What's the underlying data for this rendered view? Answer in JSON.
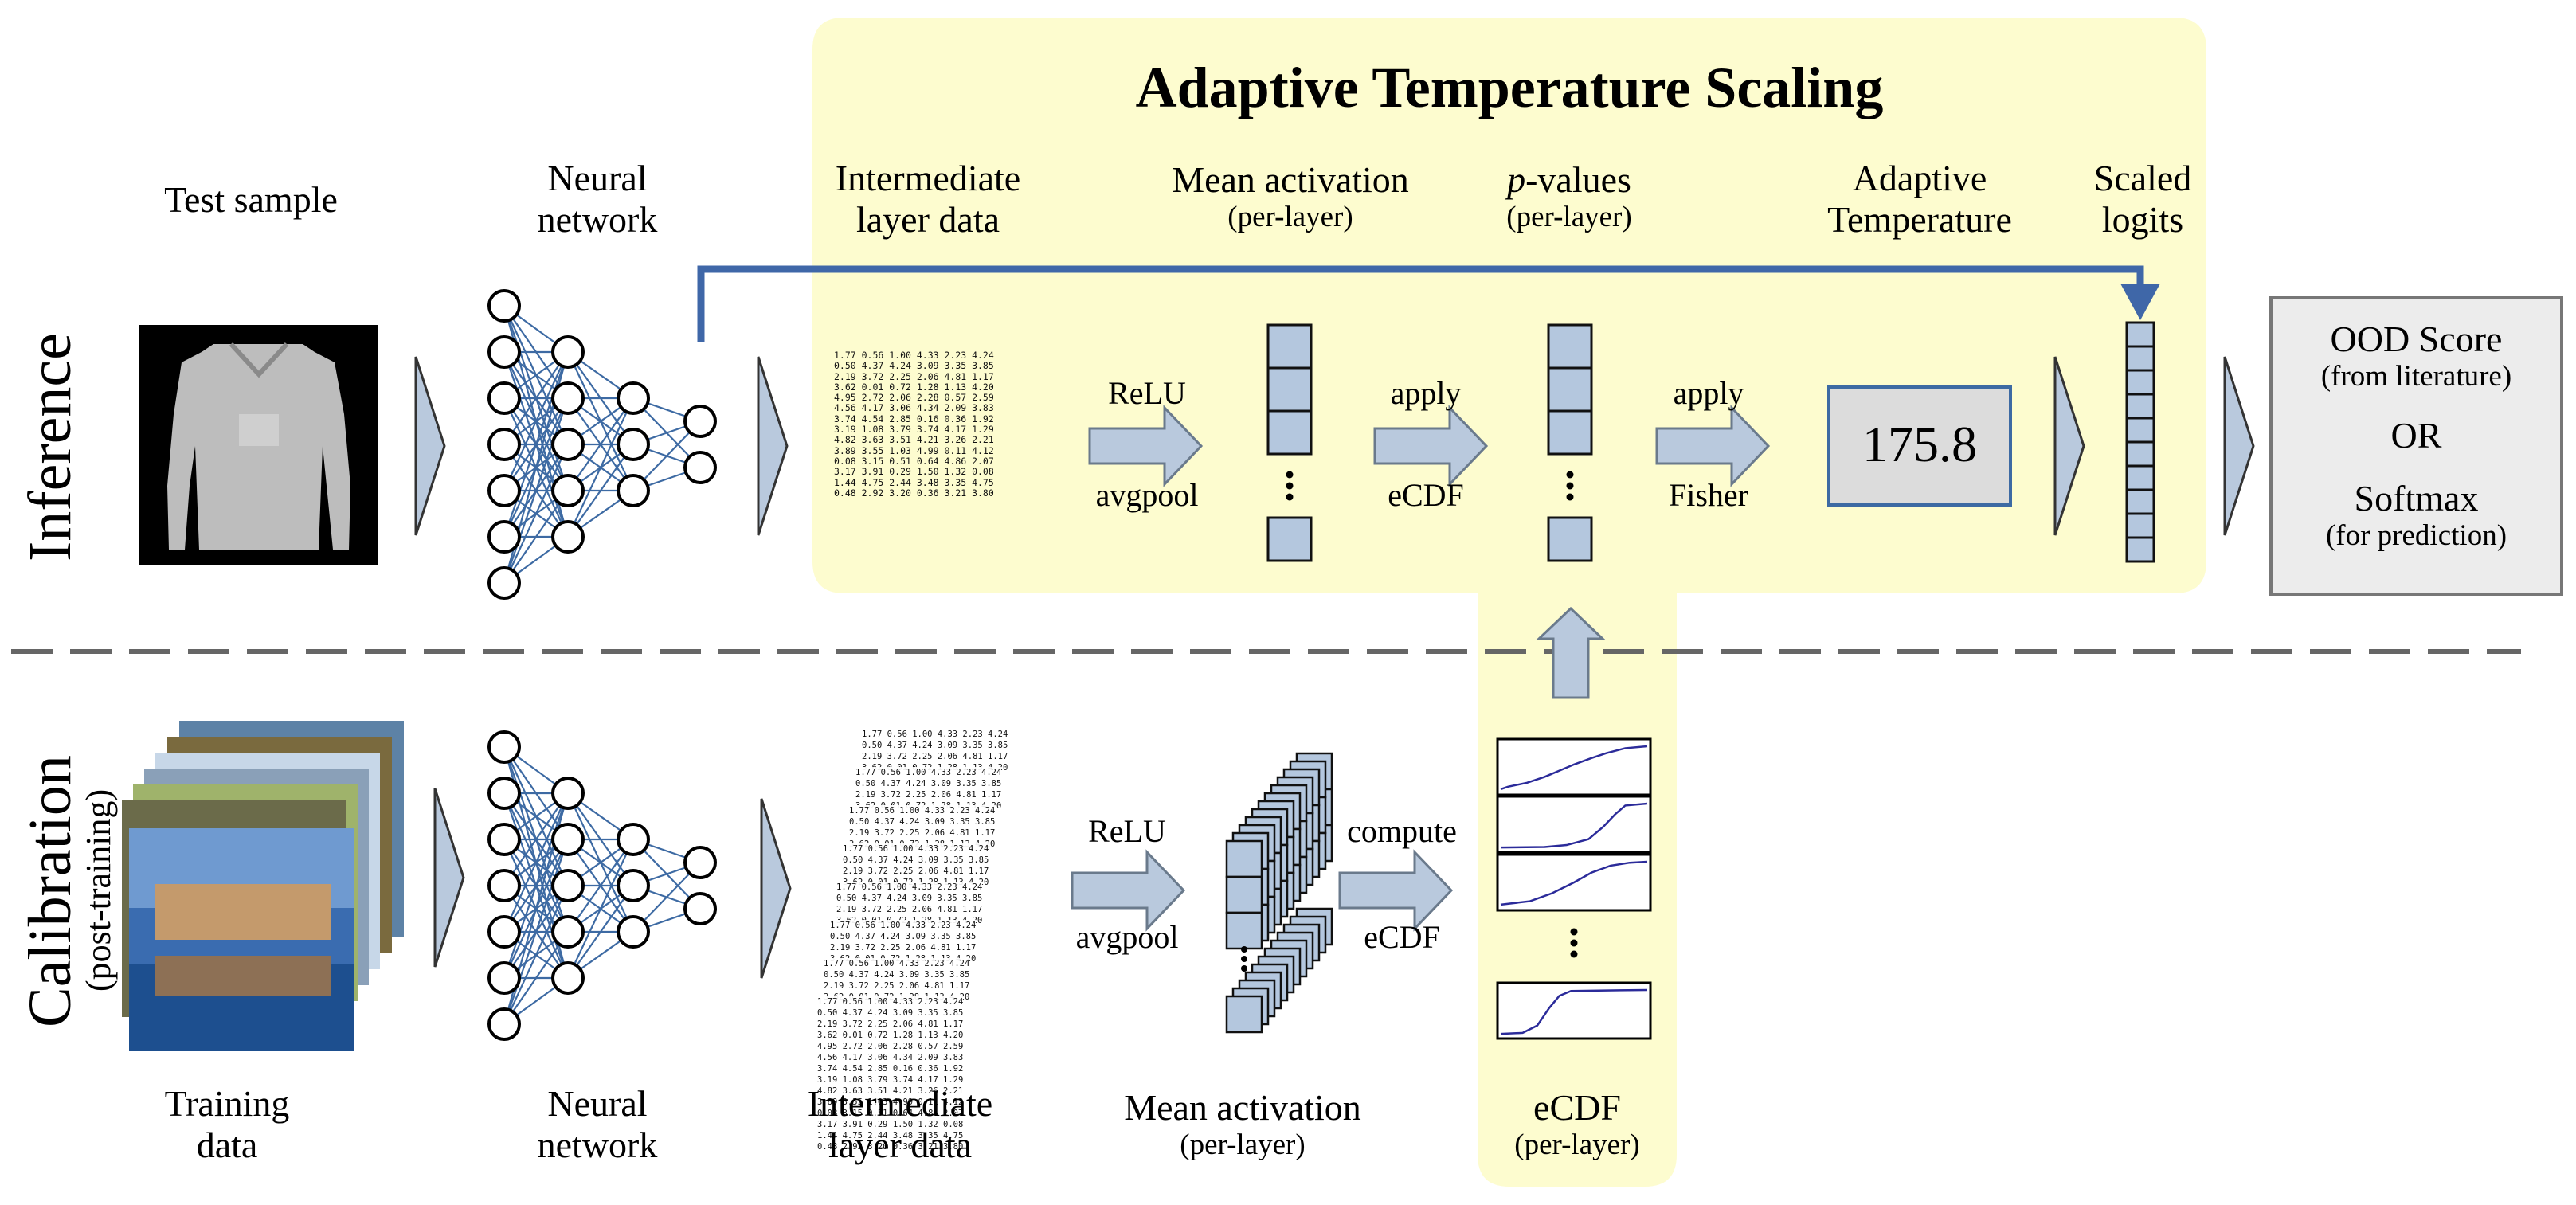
{
  "title": "Adaptive Temperature Scaling",
  "rows": {
    "inference": "Inference",
    "calibration": "Calibration",
    "calibration_sub": "(post-training)"
  },
  "inference": {
    "test_sample": "Test sample",
    "neural_network": [
      "Neural",
      "network"
    ],
    "intermediate": [
      "Intermediate",
      "layer data"
    ],
    "mean_activation": "Mean activation",
    "per_layer": "(per-layer)",
    "pvalues_p": "p",
    "pvalues_rest": "-values",
    "adaptive_temp": [
      "Adaptive",
      "Temperature"
    ],
    "scaled_logits": [
      "Scaled",
      "logits"
    ],
    "op1_top": "ReLU",
    "op1_bottom": "avgpool",
    "op2_top": "apply",
    "op2_bottom": "eCDF",
    "op3_top": "apply",
    "op3_bottom": "Fisher",
    "temperature_value": "175.8",
    "output": {
      "ood": "OOD Score",
      "ood_sub": "(from literature)",
      "or": "OR",
      "softmax": "Softmax",
      "softmax_sub": "(for prediction)"
    }
  },
  "calibration": {
    "training_data": [
      "Training",
      "data"
    ],
    "neural_network": [
      "Neural",
      "network"
    ],
    "intermediate": [
      "Intermediate",
      "layer data"
    ],
    "mean_activation": "Mean activation",
    "per_layer": "(per-layer)",
    "op1_top": "ReLU",
    "op1_bottom": "avgpool",
    "op2_top": "compute",
    "op2_bottom": "eCDF",
    "ecdf": "eCDF",
    "ecdf_sub": "(per-layer)"
  },
  "matrix_rows": [
    "1.77 0.56 1.00 4.33 2.23 4.24",
    "0.50 4.37 4.24 3.09 3.35 3.85",
    "2.19 3.72 2.25 2.06 4.81 1.17",
    "3.62 0.01 0.72 1.28 1.13 4.20",
    "4.95 2.72 2.06 2.28 0.57 2.59",
    "4.56 4.17 3.06 4.34 2.09 3.83",
    "3.74 4.54 2.85 0.16 0.36 1.92",
    "3.19 1.08 3.79 3.74 4.17 1.29",
    "4.82 3.63 3.51 4.21 3.26 2.21",
    "3.89 3.55 1.03 4.99 0.11 4.12",
    "0.08 3.15 0.51 0.64 4.86 2.07",
    "3.17 3.91 0.29 1.50 1.32 0.08",
    "1.44 4.75 2.44 3.48 3.35 4.75",
    "0.48 2.92 3.20 0.36 3.21 3.80"
  ],
  "colors": {
    "highlight": "#fdfccf",
    "arrow_fill": "#b9c9dd",
    "arrow_stroke": "#6a7a8c",
    "cell_fill": "#b4c7de",
    "net_line": "#3d6aa3",
    "route_arrow": "#3f67a8",
    "output_box": "#ececec",
    "ecdf_curve": "#2b2b9a"
  }
}
